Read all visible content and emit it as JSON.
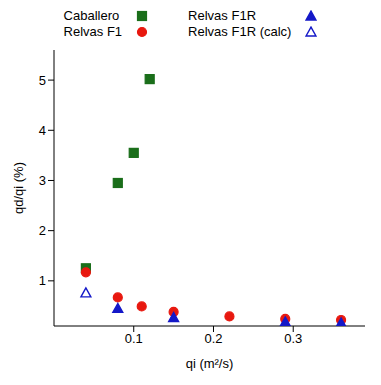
{
  "chart_data": {
    "type": "scatter",
    "x_label": "qi (m²/s)",
    "y_label": "qd/qi (%)",
    "xlim": [
      0,
      0.39
    ],
    "xticks": [
      0.1,
      0.2,
      0.3
    ],
    "ylim": [
      0.1,
      5.6
    ],
    "yticks": [
      1,
      2,
      3,
      4,
      5
    ],
    "grid": false,
    "legend": "top",
    "series": [
      {
        "name": "Caballero",
        "color": "#1a6e1a",
        "marker": "square",
        "x": [
          0.04,
          0.08,
          0.1,
          0.12
        ],
        "values": [
          1.25,
          2.95,
          3.55,
          5.02
        ]
      },
      {
        "name": "Relvas F1",
        "color": "#e8180f",
        "marker": "circle",
        "x": [
          0.04,
          0.08,
          0.11,
          0.15,
          0.22,
          0.29,
          0.36
        ],
        "values": [
          1.17,
          0.67,
          0.49,
          0.38,
          0.29,
          0.24,
          0.22
        ]
      },
      {
        "name": "Relvas F1R",
        "color": "#1418c8",
        "marker": "triangle",
        "x": [
          0.08,
          0.15,
          0.29,
          0.36
        ],
        "values": [
          0.45,
          0.27,
          0.18,
          0.16
        ]
      },
      {
        "name": "Relvas F1R (calc)",
        "color": "#1418c8",
        "marker": "open_triangle",
        "x": [
          0.04
        ],
        "values": [
          0.76
        ]
      }
    ]
  }
}
